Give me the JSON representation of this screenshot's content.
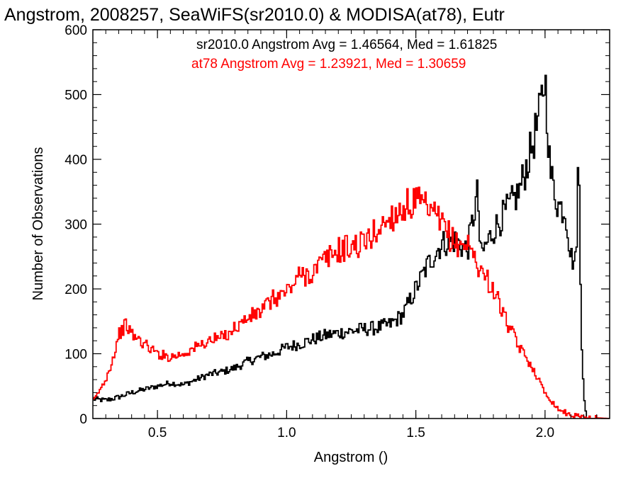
{
  "chart_data": {
    "type": "line",
    "title": "Angstrom, 2008257, SeaWiFS(sr2010.0) & MODISA(at78), Eutr",
    "xlabel": "Angstrom ()",
    "ylabel": "Number of Observations",
    "xlim": [
      0.25,
      2.25
    ],
    "ylim": [
      0,
      600
    ],
    "grid": false,
    "x_ticks": [
      "0.5",
      "1.0",
      "1.5",
      "2.0"
    ],
    "y_ticks": [
      "0",
      "100",
      "200",
      "300",
      "400",
      "500",
      "600"
    ],
    "annotations": [
      {
        "text": "sr2010.0 Angstrom Avg = 1.46564, Med = 1.61825",
        "color": "#000000"
      },
      {
        "text": "at78 Angstrom Avg = 1.23921, Med = 1.30659",
        "color": "#ff0000"
      }
    ],
    "series": [
      {
        "name": "sr2010.0",
        "color": "#000000",
        "x": [
          0.25,
          0.3,
          0.35,
          0.4,
          0.45,
          0.5,
          0.55,
          0.6,
          0.65,
          0.7,
          0.75,
          0.8,
          0.85,
          0.9,
          0.95,
          1.0,
          1.05,
          1.1,
          1.15,
          1.2,
          1.25,
          1.3,
          1.35,
          1.4,
          1.45,
          1.5,
          1.55,
          1.6,
          1.65,
          1.7,
          1.74,
          1.75,
          1.8,
          1.85,
          1.9,
          1.95,
          1.98,
          2.0,
          2.02,
          2.05,
          2.08,
          2.1,
          2.12,
          2.13,
          2.14,
          2.15,
          2.16,
          2.25
        ],
        "y": [
          30,
          28,
          33,
          40,
          45,
          50,
          55,
          52,
          60,
          68,
          72,
          78,
          88,
          95,
          100,
          110,
          115,
          122,
          128,
          132,
          135,
          138,
          140,
          145,
          160,
          200,
          240,
          270,
          275,
          260,
          350,
          250,
          290,
          320,
          350,
          420,
          470,
          530,
          380,
          330,
          320,
          250,
          240,
          420,
          140,
          40,
          0,
          0
        ]
      },
      {
        "name": "at78",
        "color": "#ff0000",
        "x": [
          0.25,
          0.3,
          0.33,
          0.35,
          0.38,
          0.4,
          0.45,
          0.5,
          0.55,
          0.6,
          0.65,
          0.7,
          0.75,
          0.8,
          0.85,
          0.9,
          0.95,
          1.0,
          1.05,
          1.1,
          1.15,
          1.2,
          1.25,
          1.3,
          1.35,
          1.4,
          1.45,
          1.5,
          1.55,
          1.6,
          1.65,
          1.7,
          1.75,
          1.8,
          1.85,
          1.9,
          1.95,
          2.0,
          2.05,
          2.1,
          2.15,
          2.25
        ],
        "y": [
          25,
          60,
          95,
          130,
          145,
          130,
          115,
          100,
          95,
          100,
          110,
          120,
          125,
          140,
          155,
          165,
          185,
          195,
          220,
          225,
          245,
          260,
          265,
          270,
          290,
          310,
          325,
          335,
          320,
          300,
          270,
          270,
          230,
          200,
          150,
          110,
          80,
          40,
          15,
          5,
          2,
          0
        ]
      }
    ]
  }
}
